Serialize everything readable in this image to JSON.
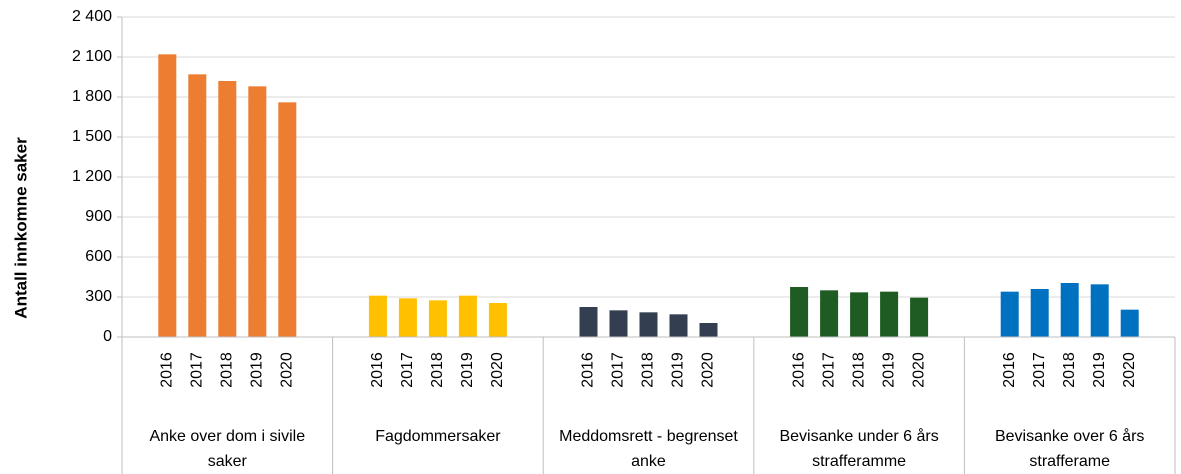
{
  "chart_data": {
    "type": "grouped-bar",
    "ylabel": "Antall innkomne saker",
    "ylim": [
      0,
      2400
    ],
    "yticks": [
      0,
      300,
      600,
      900,
      {
        "value": 1200,
        "label": "1 200"
      },
      {
        "value": 1500,
        "label": "1 500"
      },
      {
        "value": 1800,
        "label": "1 800"
      },
      {
        "value": 2100,
        "label": "2 100"
      },
      {
        "value": 2400,
        "label": "2 400"
      }
    ],
    "grid": true,
    "groups": [
      {
        "name": "Anke over dom i sivile saker",
        "color": "#ED7D31",
        "categories": [
          "2016",
          "2017",
          "2018",
          "2019",
          "2020"
        ],
        "values": [
          2120,
          1970,
          1920,
          1880,
          1760
        ]
      },
      {
        "name": "Fagdommersaker",
        "color": "#FFC000",
        "categories": [
          "2016",
          "2017",
          "2018",
          "2019",
          "2020"
        ],
        "values": [
          310,
          290,
          275,
          310,
          255
        ]
      },
      {
        "name": "Meddomsrett - begrenset anke",
        "color": "#333F50",
        "categories": [
          "2016",
          "2017",
          "2018",
          "2019",
          "2020"
        ],
        "values": [
          225,
          200,
          185,
          170,
          105
        ]
      },
      {
        "name": "Bevisanke under 6 års strafferamme",
        "color": "#1E5C23",
        "categories": [
          "2016",
          "2017",
          "2018",
          "2019",
          "2020"
        ],
        "values": [
          375,
          350,
          335,
          340,
          295
        ]
      },
      {
        "name": "Bevisanke over  6 års strafferame",
        "color": "#0070C0",
        "categories": [
          "2016",
          "2017",
          "2018",
          "2019",
          "2020"
        ],
        "values": [
          340,
          360,
          405,
          395,
          205
        ]
      }
    ]
  }
}
